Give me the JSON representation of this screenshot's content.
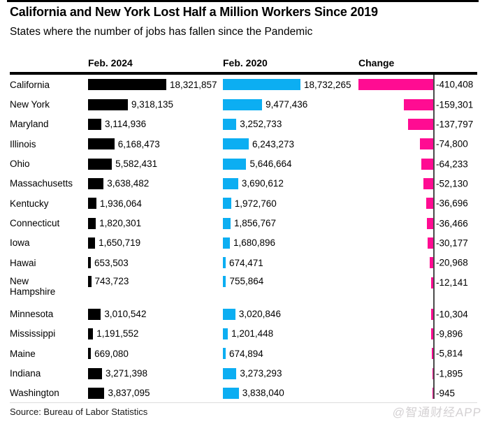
{
  "title": "California and New York Lost Half a Million Workers Since 2019",
  "subtitle": "States where the number of jobs has fallen since the Pandemic",
  "columns": {
    "col2024": "Feb. 2024",
    "col2020": "Feb. 2020",
    "change": "Change"
  },
  "source": "Source: Bureau of Labor Statistics",
  "watermark": "@智通财经APP",
  "colors": {
    "bar_feb_2024": "#000000",
    "bar_feb_2020": "#0caef2",
    "bar_change": "#ff0c92",
    "axis_line": "#4a4a4a"
  },
  "chart_data": {
    "type": "bar",
    "orientation": "horizontal",
    "title": "California and New York Lost Half a Million Workers Since 2019",
    "subtitle": "States where the number of jobs has fallen since the Pandemic",
    "source": "Source: Bureau of Labor Statistics",
    "grid": false,
    "legend": "column-headers",
    "categories": [
      "California",
      "New York",
      "Maryland",
      "Illinois",
      "Ohio",
      "Massachusetts",
      "Kentucky",
      "Connecticut",
      "Iowa",
      "Hawai",
      "New Hampshire",
      "Minnesota",
      "Mississippi",
      "Maine",
      "Indiana",
      "Washington"
    ],
    "two_line_categories": [
      "New Hampshire"
    ],
    "series": [
      {
        "name": "Feb. 2024",
        "color": "#000000",
        "values": [
          18321857,
          9318135,
          3114936,
          6168473,
          5582431,
          3638482,
          1936064,
          1820301,
          1650719,
          653503,
          743723,
          3010542,
          1191552,
          669080,
          3271398,
          3837095
        ]
      },
      {
        "name": "Feb. 2020",
        "color": "#0caef2",
        "values": [
          18732265,
          9477436,
          3252733,
          6243273,
          5646664,
          3690612,
          1972760,
          1856767,
          1680896,
          674471,
          755864,
          3020846,
          1201448,
          674894,
          3273293,
          3838040
        ]
      },
      {
        "name": "Change",
        "color": "#ff0c92",
        "values": [
          -410408,
          -159301,
          -137797,
          -74800,
          -64233,
          -52130,
          -36696,
          -36466,
          -30177,
          -20968,
          -12141,
          -10304,
          -9896,
          -5814,
          -1895,
          -945
        ]
      }
    ]
  }
}
